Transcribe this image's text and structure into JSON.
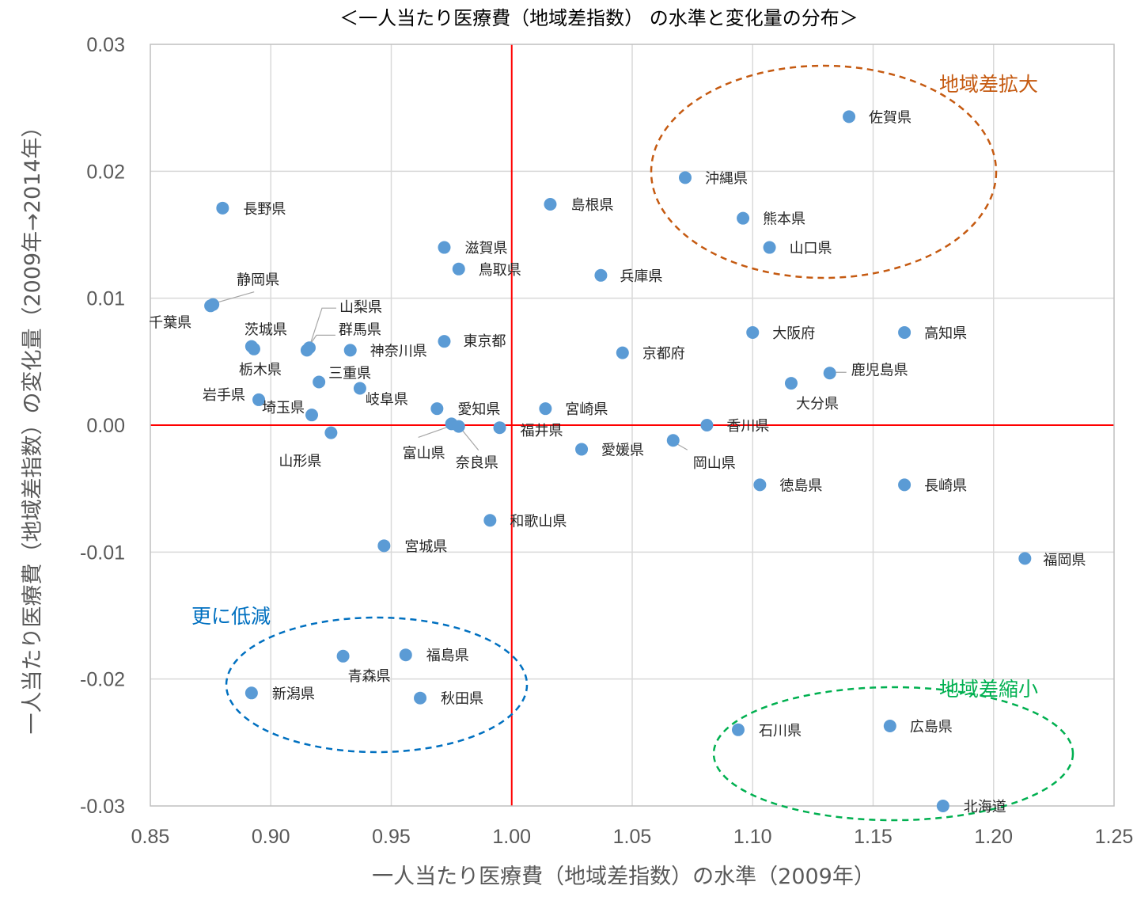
{
  "chart_data": {
    "type": "scatter",
    "title": "＜一人当たり医療費（地域差指数） の水準と変化量の分布＞",
    "xlabel": "一人当たり医療費（地域差指数）の水準（2009年）",
    "ylabel": "一人当たり医療費（地域差指数）の変化量（2009年→2014年）",
    "xlim": [
      0.85,
      1.25
    ],
    "ylim": [
      -0.03,
      0.03
    ],
    "x_ticks": [
      0.85,
      0.9,
      0.95,
      1.0,
      1.05,
      1.1,
      1.15,
      1.2,
      1.25
    ],
    "y_ticks": [
      -0.03,
      -0.02,
      -0.01,
      0.0,
      0.01,
      0.02,
      0.03
    ],
    "x_tick_labels": [
      "0.85",
      "0.90",
      "0.95",
      "1.00",
      "1.05",
      "1.10",
      "1.15",
      "1.20",
      "1.25"
    ],
    "y_tick_labels": [
      "-0.03",
      "-0.02",
      "-0.01",
      "0.00",
      "0.01",
      "0.02",
      "0.03"
    ],
    "grid": true,
    "reference_lines": {
      "x": 1.0,
      "y": 0.0,
      "color": "#ff0000"
    },
    "marker_color": "#5b9bd5",
    "points": [
      {
        "label": "北海道",
        "x": 1.179,
        "y": -0.03
      },
      {
        "label": "青森県",
        "x": 0.93,
        "y": -0.0182
      },
      {
        "label": "岩手県",
        "x": 0.895,
        "y": 0.002
      },
      {
        "label": "宮城県",
        "x": 0.947,
        "y": -0.0095
      },
      {
        "label": "秋田県",
        "x": 0.962,
        "y": -0.0215
      },
      {
        "label": "山形県",
        "x": 0.925,
        "y": -0.0006
      },
      {
        "label": "福島県",
        "x": 0.956,
        "y": -0.0181
      },
      {
        "label": "茨城県",
        "x": 0.892,
        "y": 0.0062
      },
      {
        "label": "栃木県",
        "x": 0.893,
        "y": 0.006
      },
      {
        "label": "群馬県",
        "x": 0.915,
        "y": 0.0059
      },
      {
        "label": "埼玉県",
        "x": 0.917,
        "y": 0.0008
      },
      {
        "label": "千葉県",
        "x": 0.875,
        "y": 0.0094
      },
      {
        "label": "東京都",
        "x": 0.972,
        "y": 0.0066
      },
      {
        "label": "神奈川県",
        "x": 0.933,
        "y": 0.0059
      },
      {
        "label": "新潟県",
        "x": 0.892,
        "y": -0.0211
      },
      {
        "label": "富山県",
        "x": 0.975,
        "y": 0.0001
      },
      {
        "label": "石川県",
        "x": 1.094,
        "y": -0.024
      },
      {
        "label": "福井県",
        "x": 0.995,
        "y": -0.0002
      },
      {
        "label": "山梨県",
        "x": 0.916,
        "y": 0.0061
      },
      {
        "label": "長野県",
        "x": 0.88,
        "y": 0.0171
      },
      {
        "label": "岐阜県",
        "x": 0.937,
        "y": 0.0029
      },
      {
        "label": "静岡県",
        "x": 0.876,
        "y": 0.0095
      },
      {
        "label": "愛知県",
        "x": 0.969,
        "y": 0.0013
      },
      {
        "label": "三重県",
        "x": 0.92,
        "y": 0.0034
      },
      {
        "label": "滋賀県",
        "x": 0.972,
        "y": 0.014
      },
      {
        "label": "京都府",
        "x": 1.046,
        "y": 0.0057
      },
      {
        "label": "大阪府",
        "x": 1.1,
        "y": 0.0073
      },
      {
        "label": "兵庫県",
        "x": 1.037,
        "y": 0.0118
      },
      {
        "label": "奈良県",
        "x": 0.978,
        "y": -0.0001
      },
      {
        "label": "和歌山県",
        "x": 0.991,
        "y": -0.0075
      },
      {
        "label": "鳥取県",
        "x": 0.978,
        "y": 0.0123
      },
      {
        "label": "島根県",
        "x": 1.016,
        "y": 0.0174
      },
      {
        "label": "岡山県",
        "x": 1.067,
        "y": -0.0012
      },
      {
        "label": "広島県",
        "x": 1.157,
        "y": -0.0237
      },
      {
        "label": "山口県",
        "x": 1.107,
        "y": 0.014
      },
      {
        "label": "徳島県",
        "x": 1.103,
        "y": -0.0047
      },
      {
        "label": "香川県",
        "x": 1.081,
        "y": 0.0
      },
      {
        "label": "愛媛県",
        "x": 1.029,
        "y": -0.0019
      },
      {
        "label": "高知県",
        "x": 1.163,
        "y": 0.0073
      },
      {
        "label": "福岡県",
        "x": 1.213,
        "y": -0.0105
      },
      {
        "label": "佐賀県",
        "x": 1.14,
        "y": 0.0243
      },
      {
        "label": "長崎県",
        "x": 1.163,
        "y": -0.0047
      },
      {
        "label": "熊本県",
        "x": 1.096,
        "y": 0.0163
      },
      {
        "label": "大分県",
        "x": 1.116,
        "y": 0.0033
      },
      {
        "label": "宮崎県",
        "x": 1.014,
        "y": 0.0013
      },
      {
        "label": "鹿児島県",
        "x": 1.132,
        "y": 0.0041
      },
      {
        "label": "沖縄県",
        "x": 1.072,
        "y": 0.0195
      }
    ],
    "annotations": [
      {
        "text": "地域差拡大",
        "color": "#c55a11"
      },
      {
        "text": "更に低減",
        "color": "#0070c0"
      },
      {
        "text": "地域差縮小",
        "color": "#00b050"
      }
    ]
  }
}
